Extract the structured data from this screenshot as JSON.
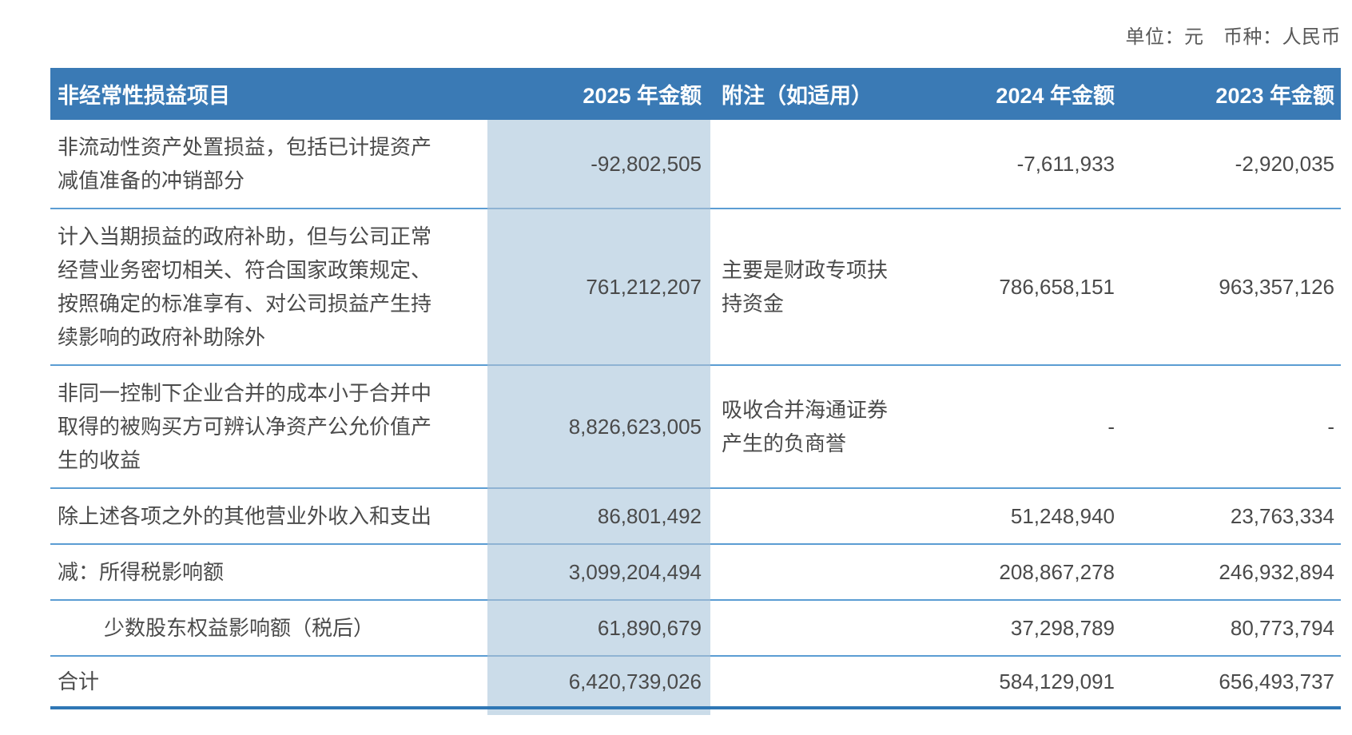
{
  "meta": {
    "unit_label": "单位：元　币种：人民币"
  },
  "colors": {
    "header_bg": "#3a7ab5",
    "header_text": "#ffffff",
    "highlight_column_bg": "#cbdce9",
    "row_separator": "#5b9dd3",
    "bottom_border": "#2f77b5",
    "body_text": "#4a4a4a"
  },
  "table": {
    "columns": [
      {
        "key": "item",
        "label": "非经常性损益项目",
        "align": "left"
      },
      {
        "key": "y2025",
        "label": "2025 年金额",
        "align": "right",
        "highlighted": true
      },
      {
        "key": "note",
        "label": "附注（如适用）",
        "align": "left"
      },
      {
        "key": "y2024",
        "label": "2024 年金额",
        "align": "right"
      },
      {
        "key": "y2023",
        "label": "2023 年金额",
        "align": "right"
      }
    ],
    "rows": [
      {
        "item": "非流动性资产处置损益，包括已计提资产减值准备的冲销部分",
        "y2025": "-92,802,505",
        "note": "",
        "y2024": "-7,611,933",
        "y2023": "-2,920,035"
      },
      {
        "item": "计入当期损益的政府补助，但与公司正常经营业务密切相关、符合国家政策规定、按照确定的标准享有、对公司损益产生持续影响的政府补助除外",
        "y2025": "761,212,207",
        "note": "主要是财政专项扶持资金",
        "y2024": "786,658,151",
        "y2023": "963,357,126"
      },
      {
        "item": "非同一控制下企业合并的成本小于合并中取得的被购买方可辨认净资产公允价值产生的收益",
        "y2025": "8,826,623,005",
        "note": "吸收合并海通证券产生的负商誉",
        "y2024": "-",
        "y2023": "-"
      },
      {
        "item": "除上述各项之外的其他营业外收入和支出",
        "y2025": "86,801,492",
        "note": "",
        "y2024": "51,248,940",
        "y2023": "23,763,334"
      },
      {
        "item": "减：所得税影响额",
        "y2025": "3,099,204,494",
        "note": "",
        "y2024": "208,867,278",
        "y2023": "246,932,894"
      },
      {
        "item": "少数股东权益影响额（税后）",
        "indent": true,
        "y2025": "61,890,679",
        "note": "",
        "y2024": "37,298,789",
        "y2023": "80,773,794"
      },
      {
        "item": "合计",
        "is_total": true,
        "y2025": "6,420,739,026",
        "note": "",
        "y2024": "584,129,091",
        "y2023": "656,493,737"
      }
    ]
  }
}
